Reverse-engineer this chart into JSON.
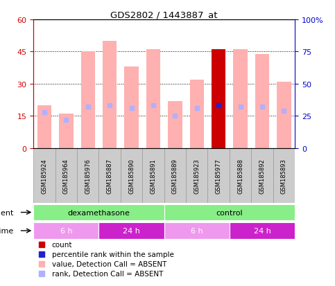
{
  "title": "GDS2802 / 1443887_at",
  "samples": [
    "GSM185924",
    "GSM185964",
    "GSM185976",
    "GSM185887",
    "GSM185890",
    "GSM185891",
    "GSM185889",
    "GSM185923",
    "GSM185977",
    "GSM185888",
    "GSM185892",
    "GSM185893"
  ],
  "bar_values": [
    20,
    16,
    45,
    50,
    38,
    46,
    22,
    32,
    46,
    46,
    44,
    31
  ],
  "rank_values": [
    28,
    22,
    32,
    33,
    31,
    33,
    25,
    31,
    33,
    32,
    32,
    29
  ],
  "bar_colors": [
    "#ffb0b0",
    "#ffb0b0",
    "#ffb0b0",
    "#ffb0b0",
    "#ffb0b0",
    "#ffb0b0",
    "#ffb0b0",
    "#ffb0b0",
    "#cc0000",
    "#ffb0b0",
    "#ffb0b0",
    "#ffb0b0"
  ],
  "rank_colors": [
    "#b0b0ff",
    "#b0b0ff",
    "#b0b0ff",
    "#b0b0ff",
    "#b0b0ff",
    "#b0b0ff",
    "#b0b0ff",
    "#b0b0ff",
    "#2222cc",
    "#b0b0ff",
    "#b0b0ff",
    "#b0b0ff"
  ],
  "ylim_left": [
    0,
    60
  ],
  "ylim_right": [
    0,
    100
  ],
  "yticks_left": [
    0,
    15,
    30,
    45,
    60
  ],
  "yticks_right": [
    0,
    25,
    50,
    75,
    100
  ],
  "ytick_labels_left": [
    "0",
    "15",
    "30",
    "45",
    "60"
  ],
  "ytick_labels_right": [
    "0",
    "25",
    "50",
    "75",
    "100%"
  ],
  "agent_groups": [
    {
      "label": "dexamethasone",
      "start": 0,
      "end": 6,
      "color": "#88ee88"
    },
    {
      "label": "control",
      "start": 6,
      "end": 12,
      "color": "#88ee88"
    }
  ],
  "time_groups": [
    {
      "label": "6 h",
      "start": 0,
      "end": 3,
      "color": "#ee88ee"
    },
    {
      "label": "24 h",
      "start": 3,
      "end": 6,
      "color": "#cc33cc"
    },
    {
      "label": "6 h",
      "start": 6,
      "end": 9,
      "color": "#ee88ee"
    },
    {
      "label": "24 h",
      "start": 9,
      "end": 12,
      "color": "#cc33cc"
    }
  ],
  "legend_items": [
    {
      "color": "#cc0000",
      "label": "count"
    },
    {
      "color": "#2222cc",
      "label": "percentile rank within the sample"
    },
    {
      "color": "#ffb0b0",
      "label": "value, Detection Call = ABSENT"
    },
    {
      "color": "#b0b0ff",
      "label": "rank, Detection Call = ABSENT"
    }
  ],
  "tick_color_left": "#cc0000",
  "tick_color_right": "#0000cc",
  "label_bg_color": "#cccccc",
  "label_border_color": "#999999"
}
